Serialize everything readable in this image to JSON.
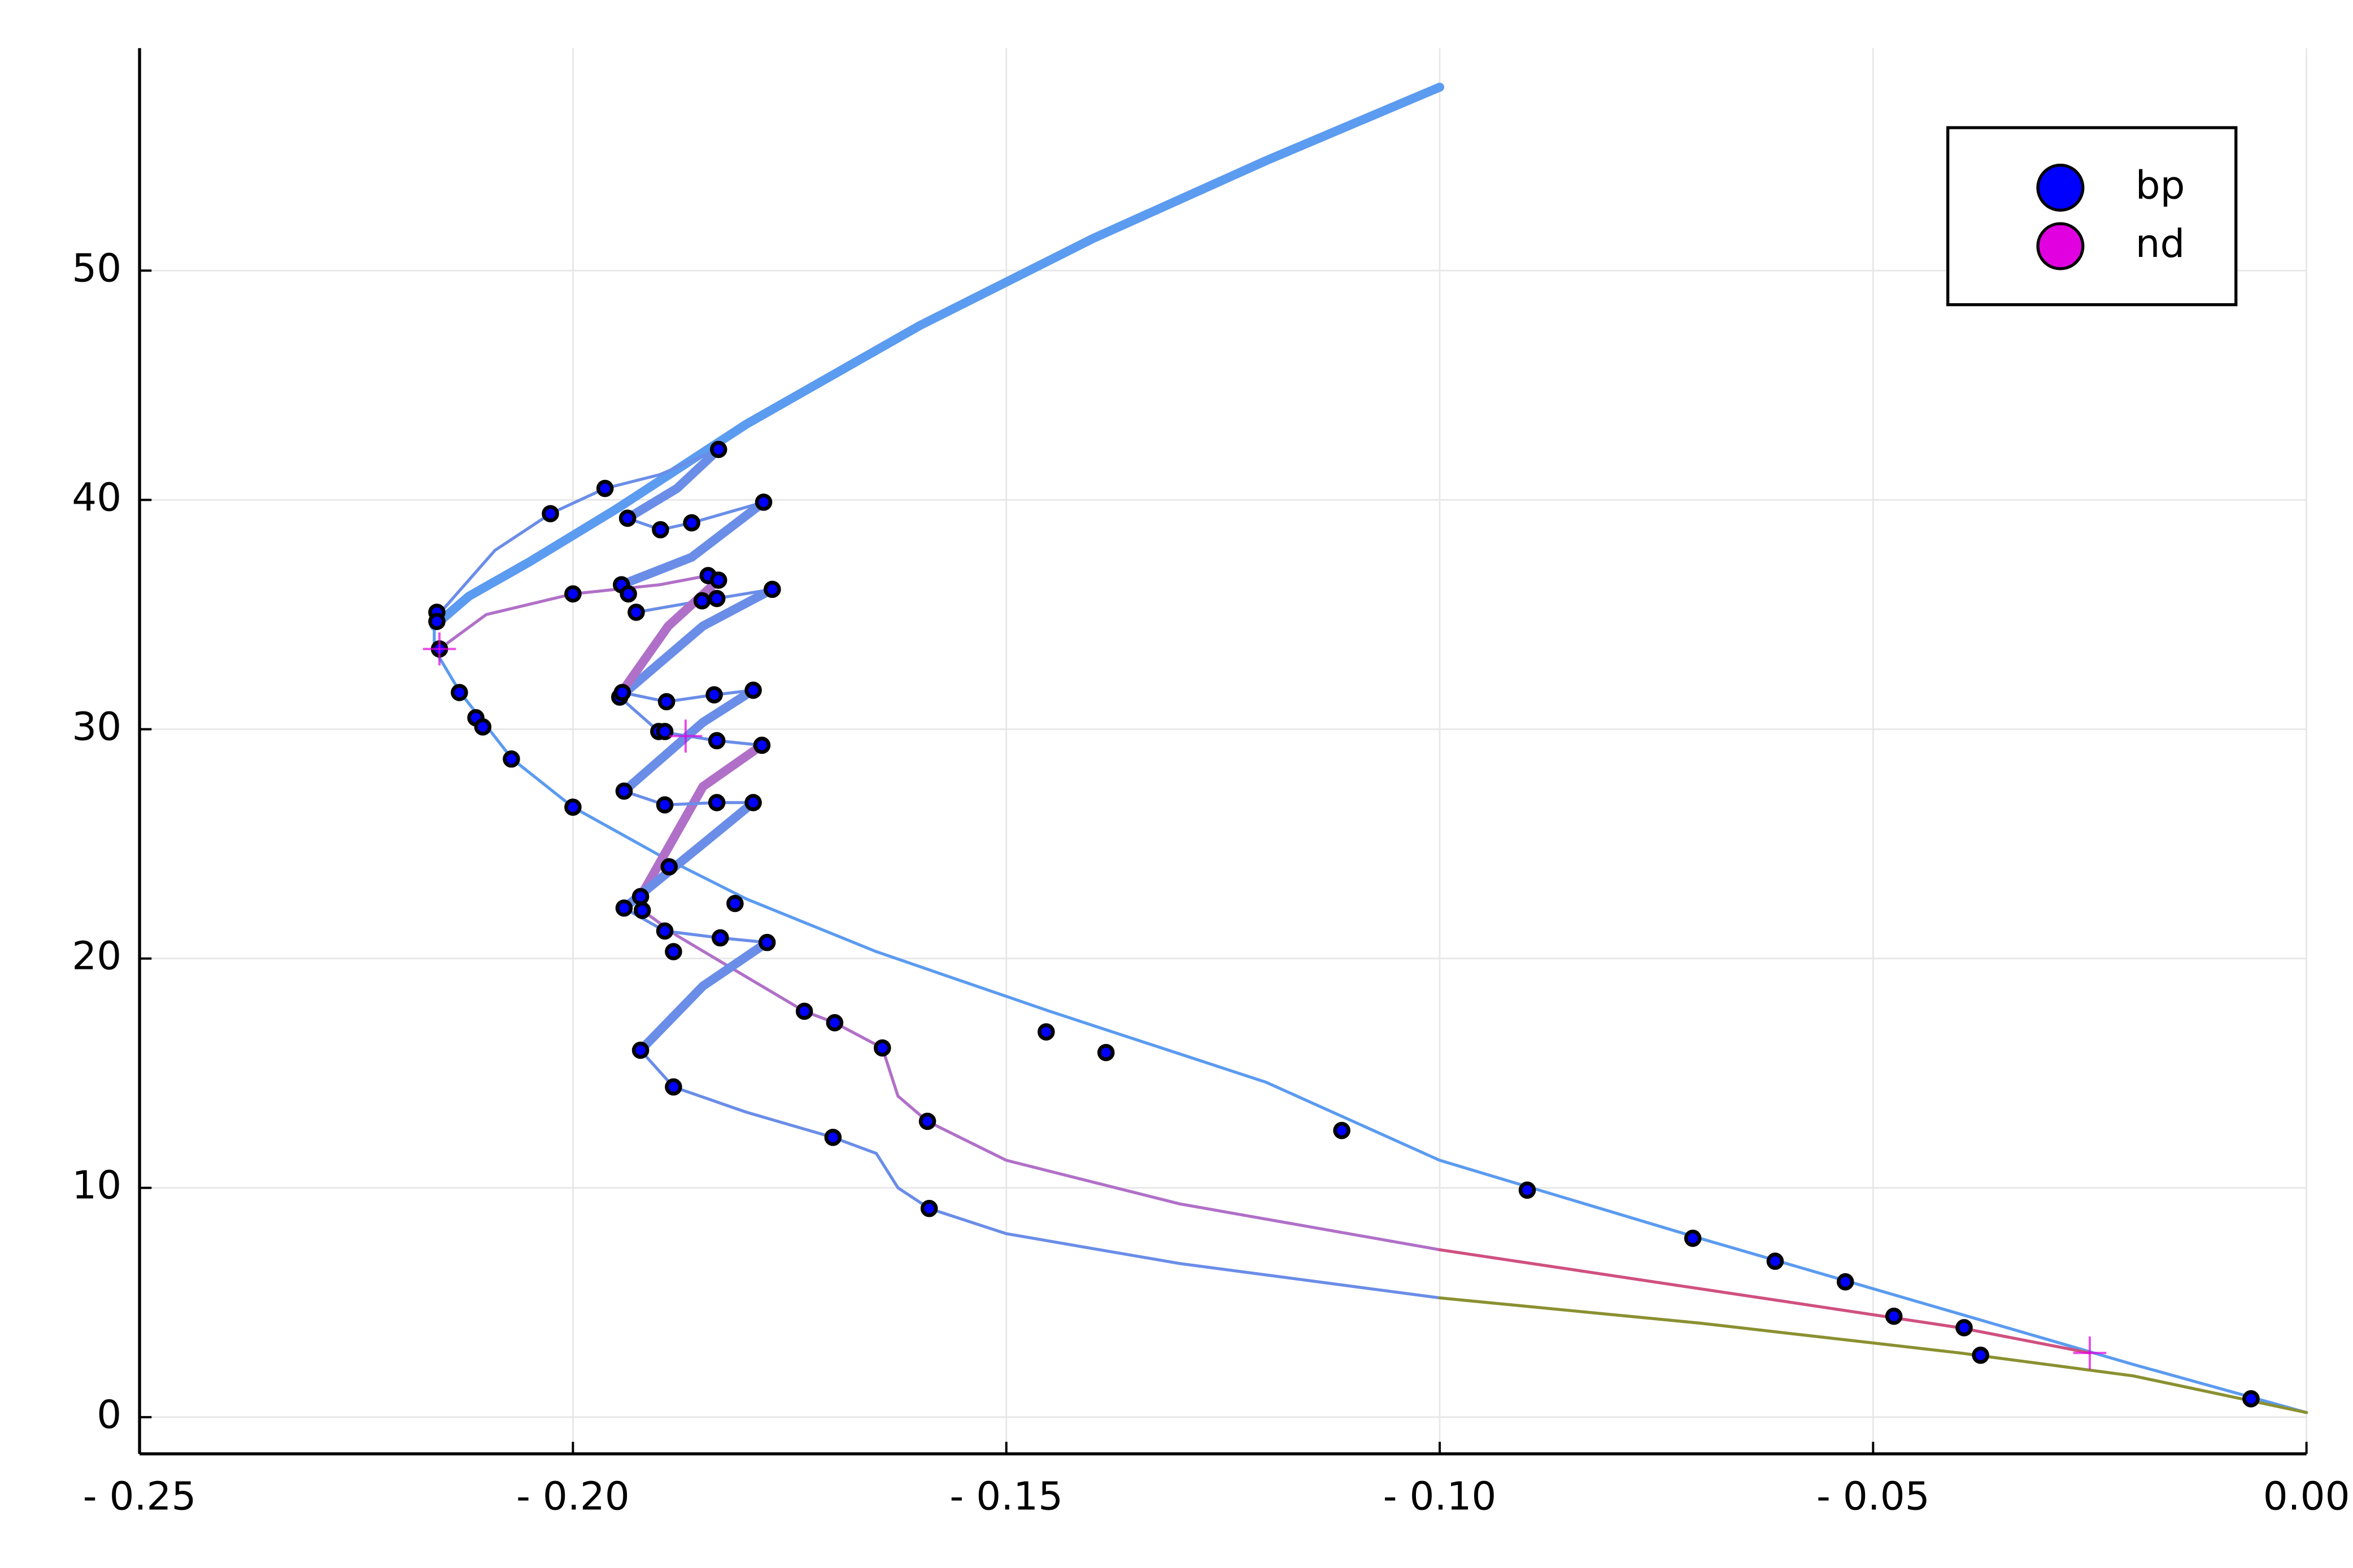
{
  "chart_data": {
    "type": "line",
    "xlim": [
      -0.25,
      0
    ],
    "ylim": [
      -1.6,
      59.7
    ],
    "xticks": [
      {
        "value": -0.25,
        "label": "- 0.25"
      },
      {
        "value": -0.2,
        "label": "- 0.20"
      },
      {
        "value": -0.15,
        "label": "- 0.15"
      },
      {
        "value": -0.1,
        "label": "- 0.10"
      },
      {
        "value": -0.05,
        "label": "- 0.05"
      },
      {
        "value": 0,
        "label": "0.00"
      }
    ],
    "yticks": [
      0,
      10,
      20,
      30,
      40,
      50
    ],
    "grid": true,
    "legend": "top-right",
    "lines": [
      {
        "color": "#5b9bf0",
        "thick": true,
        "x": [
          -0.1,
          -0.12,
          -0.14,
          -0.16,
          -0.18,
          -0.195,
          -0.205,
          -0.212,
          -0.216
        ],
        "y": [
          58,
          54.8,
          51.4,
          47.6,
          43.3,
          39.6,
          37.3,
          35.8,
          34.5
        ]
      },
      {
        "color": "#5b9bf0",
        "thick": false,
        "x": [
          -0.216,
          -0.216,
          -0.213,
          -0.207,
          -0.2,
          -0.19,
          -0.18,
          -0.165,
          -0.145,
          -0.12,
          -0.1,
          -0.07,
          -0.04,
          -0.02,
          0
        ],
        "y": [
          34.5,
          33.5,
          31.6,
          28.7,
          26.6,
          24.5,
          22.6,
          20.3,
          17.7,
          14.6,
          11.2,
          7.8,
          4.5,
          2.3,
          0.2
        ]
      },
      {
        "color": "#6a8de8",
        "thick": false,
        "x": [
          -0.2155,
          -0.209,
          -0.2026,
          -0.1963,
          -0.19,
          -0.1832
        ],
        "y": [
          35,
          37.8,
          39.4,
          40.5,
          41.1,
          42.2
        ]
      },
      {
        "color": "#6a8de8",
        "thick": true,
        "x": [
          -0.1937,
          -0.188,
          -0.1832
        ],
        "y": [
          39.2,
          40.5,
          42.2
        ]
      },
      {
        "color": "#6a8de8",
        "thick": false,
        "x": [
          -0.1937,
          -0.1899,
          -0.1863,
          -0.178
        ],
        "y": [
          39.2,
          38.7,
          39.0,
          39.9
        ]
      },
      {
        "color": "#6a8de8",
        "thick": true,
        "x": [
          -0.178,
          -0.1863,
          -0.1944
        ],
        "y": [
          39.9,
          37.5,
          36.3
        ]
      },
      {
        "color": "#b070c8",
        "thick": false,
        "x": [
          -0.2154,
          -0.21,
          -0.2,
          -0.19,
          -0.1844,
          -0.1832
        ],
        "y": [
          33.5,
          35,
          35.9,
          36.3,
          36.7,
          36.5
        ]
      },
      {
        "color": "#6a8de8",
        "thick": false,
        "x": [
          -0.1927,
          -0.1851,
          -0.177
        ],
        "y": [
          35.1,
          35.6,
          36.1
        ]
      },
      {
        "color": "#6a8de8",
        "thick": true,
        "x": [
          -0.177,
          -0.185,
          -0.1946
        ],
        "y": [
          36.1,
          34.5,
          31.4
        ]
      },
      {
        "color": "#b070c8",
        "thick": true,
        "x": [
          -0.1832,
          -0.189,
          -0.1946
        ],
        "y": [
          36.5,
          34.5,
          31.5
        ]
      },
      {
        "color": "#6a8de8",
        "thick": false,
        "x": [
          -0.1943,
          -0.1892,
          -0.1837,
          -0.1792
        ],
        "y": [
          31.6,
          31.2,
          31.5,
          31.7
        ]
      },
      {
        "color": "#6a8de8",
        "thick": true,
        "x": [
          -0.1792,
          -0.185,
          -0.1941
        ],
        "y": [
          31.7,
          30.3,
          27.3
        ]
      },
      {
        "color": "#6a8de8",
        "thick": false,
        "x": [
          -0.1946,
          -0.1901,
          -0.1834,
          -0.1782
        ],
        "y": [
          31.4,
          29.9,
          29.5,
          29.3
        ]
      },
      {
        "color": "#b070c8",
        "thick": true,
        "x": [
          -0.1782,
          -0.185,
          -0.1922
        ],
        "y": [
          29.3,
          27.5,
          22.7
        ]
      },
      {
        "color": "#6a8de8",
        "thick": false,
        "x": [
          -0.1941,
          -0.1894,
          -0.1834,
          -0.1792
        ],
        "y": [
          27.3,
          26.7,
          26.8,
          26.8
        ]
      },
      {
        "color": "#6a8de8",
        "thick": true,
        "x": [
          -0.1792,
          -0.185,
          -0.1941
        ],
        "y": [
          26.8,
          25,
          22.2
        ]
      },
      {
        "color": "#b070c8",
        "thick": false,
        "x": [
          -0.192,
          -0.188,
          -0.18,
          -0.1733,
          -0.1698,
          -0.1643,
          -0.1625,
          -0.1591,
          -0.15,
          -0.13,
          -0.1
        ],
        "y": [
          22.1,
          21,
          19.2,
          17.7,
          17.2,
          16.1,
          14,
          12.9,
          11.2,
          9.3,
          7.3
        ]
      },
      {
        "color": "#d05080",
        "thick": false,
        "x": [
          -0.1,
          -0.07,
          -0.04,
          -0.025
        ],
        "y": [
          7.3,
          5.6,
          3.9,
          2.8
        ]
      },
      {
        "color": "#6a8de8",
        "thick": false,
        "x": [
          -0.1941,
          -0.1894,
          -0.183,
          -0.1776
        ],
        "y": [
          22.2,
          21.2,
          20.9,
          20.7
        ]
      },
      {
        "color": "#6a8de8",
        "thick": true,
        "x": [
          -0.1776,
          -0.185,
          -0.1922
        ],
        "y": [
          20.7,
          18.8,
          16.0
        ]
      },
      {
        "color": "#6a8de8",
        "thick": false,
        "x": [
          -0.1922,
          -0.1884,
          -0.18,
          -0.17,
          -0.165,
          -0.1625,
          -0.1589,
          -0.15,
          -0.13,
          -0.1
        ],
        "y": [
          16,
          14.4,
          13.3,
          12.2,
          11.5,
          10,
          9.1,
          8,
          6.7,
          5.2
        ]
      },
      {
        "color": "#8a9030",
        "thick": false,
        "x": [
          -0.1,
          -0.07,
          -0.04,
          -0.02,
          0
        ],
        "y": [
          5.2,
          4.1,
          2.8,
          1.8,
          0.2
        ]
      }
    ],
    "series": [
      {
        "name": "bp",
        "color": "#0000ff",
        "marker": "dot",
        "x": [
          -0.1832,
          -0.1963,
          -0.2026,
          -0.1937,
          -0.1863,
          -0.1899,
          -0.178,
          -0.2157,
          -0.2157,
          -0.2154,
          -0.2,
          -0.1944,
          -0.1936,
          -0.1927,
          -0.1844,
          -0.1832,
          -0.1851,
          -0.1834,
          -0.177,
          -0.2131,
          -0.2112,
          -0.2104,
          -0.2071,
          -0.2,
          -0.1946,
          -0.1943,
          -0.1892,
          -0.1837,
          -0.1792,
          -0.1901,
          -0.1894,
          -0.1834,
          -0.1782,
          -0.1941,
          -0.1894,
          -0.1834,
          -0.1792,
          -0.1889,
          -0.1922,
          -0.1941,
          -0.192,
          -0.1813,
          -0.1894,
          -0.183,
          -0.1776,
          -0.1884,
          -0.1922,
          -0.1884,
          -0.1733,
          -0.1698,
          -0.1643,
          -0.1454,
          -0.1385,
          -0.17,
          -0.1591,
          -0.1589,
          -0.1113,
          -0.0899,
          -0.0708,
          -0.0613,
          -0.0532,
          -0.0476,
          -0.0395,
          -0.0376,
          -0.0064
        ],
        "y": [
          42.2,
          40.5,
          39.4,
          39.2,
          39.0,
          38.7,
          39.9,
          35.1,
          34.7,
          33.5,
          35.9,
          36.3,
          35.9,
          35.1,
          36.7,
          36.5,
          35.6,
          35.7,
          36.1,
          31.6,
          30.5,
          30.1,
          28.7,
          26.6,
          31.4,
          31.6,
          31.2,
          31.5,
          31.7,
          29.9,
          29.9,
          29.5,
          29.3,
          27.3,
          26.7,
          26.8,
          26.8,
          24.0,
          22.7,
          22.2,
          22.1,
          22.4,
          21.2,
          20.9,
          20.7,
          20.3,
          16.0,
          14.4,
          17.7,
          17.2,
          16.1,
          16.8,
          15.9,
          12.2,
          12.9,
          9.1,
          12.5,
          9.9,
          7.8,
          6.8,
          5.9,
          4.4,
          3.9,
          2.7,
          0.8
        ]
      },
      {
        "name": "nd",
        "color": "#e000e0",
        "marker": "cross",
        "x": [
          -0.2154,
          -0.187,
          -0.025
        ],
        "y": [
          33.5,
          29.7,
          2.8
        ]
      }
    ]
  }
}
